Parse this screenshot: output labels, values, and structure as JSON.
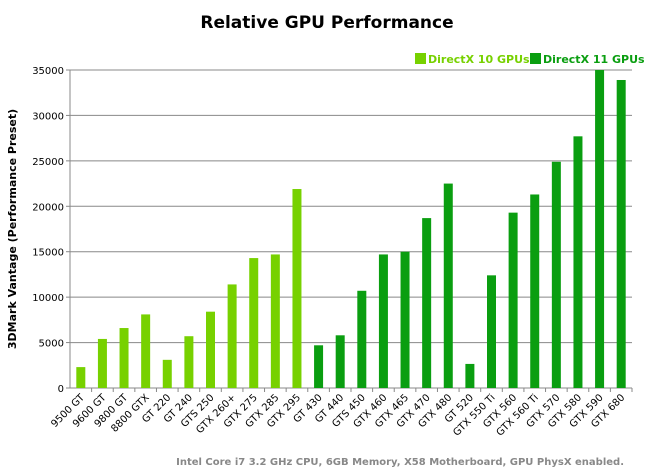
{
  "chart_data": {
    "type": "bar",
    "title": "Relative GPU Performance",
    "ylabel": "3DMark Vantage (Performance Preset)",
    "xlabel": "",
    "ylim": [
      0,
      35000
    ],
    "yticks": [
      0,
      5000,
      10000,
      15000,
      20000,
      25000,
      30000,
      35000
    ],
    "grid": true,
    "legend_placement": "top-right",
    "footnote": "Intel Core i7 3.2 GHz CPU, 6GB Memory, X58 Motherboard, GPU PhysX enabled.",
    "series": [
      {
        "name": "DirectX 10 GPUs",
        "color": "#77d100",
        "categories": [
          "9500 GT",
          "9600 GT",
          "9800 GT",
          "8800 GTX",
          "GT 220",
          "GT 240",
          "GTS 250",
          "GTX 260+",
          "GTX 275",
          "GTX 285",
          "GTX 295"
        ],
        "values": [
          2300,
          5400,
          6600,
          8100,
          3100,
          5700,
          8400,
          11400,
          14300,
          14700,
          21900
        ]
      },
      {
        "name": "DirectX 11 GPUs",
        "color": "#0a9e10",
        "categories": [
          "GT 430",
          "GT 440",
          "GTS 450",
          "GTX 460",
          "GTX 465",
          "GTX 470",
          "GTX 480",
          "GT 520",
          "GTX 550 Ti",
          "GTX 560",
          "GTX 560 Ti",
          "GTX 570",
          "GTX 580",
          "GTX 590",
          "GTX 680"
        ],
        "values": [
          4700,
          5800,
          10700,
          14700,
          15000,
          18700,
          22500,
          2650,
          12400,
          19300,
          21300,
          24900,
          27700,
          35000,
          33900
        ]
      }
    ]
  }
}
